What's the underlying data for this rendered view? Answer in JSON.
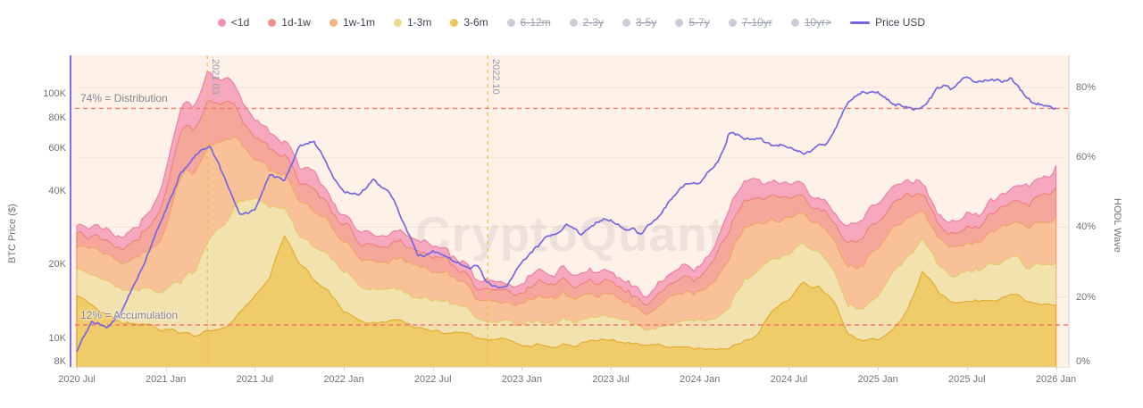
{
  "watermark": "CryptoQuant",
  "legend": {
    "active_items": [
      {
        "label": "<1d",
        "color": "#f191b0"
      },
      {
        "label": "1d-1w",
        "color": "#f0928a"
      },
      {
        "label": "1w-1m",
        "color": "#f5b385"
      },
      {
        "label": "1-3m",
        "color": "#efd98e"
      },
      {
        "label": "3-6m",
        "color": "#edc75a"
      }
    ],
    "inactive_items": [
      {
        "label": "6-12m"
      },
      {
        "label": "2-3y"
      },
      {
        "label": "3-5y"
      },
      {
        "label": "5-7y"
      },
      {
        "label": "7-10yr"
      },
      {
        "label": "10yr>"
      }
    ],
    "inactive_color": "#c9cdd8",
    "price_item": {
      "label": "Price USD",
      "color": "#7766e2"
    }
  },
  "axes": {
    "left": {
      "title": "BTC Price ($)",
      "scale": "log",
      "ticks": [
        {
          "label": "100K",
          "value": 100000
        },
        {
          "label": "80K",
          "value": 80000
        },
        {
          "label": "60K",
          "value": 60000
        },
        {
          "label": "40K",
          "value": 40000
        },
        {
          "label": "20K",
          "value": 20000
        },
        {
          "label": "10K",
          "value": 10000
        },
        {
          "label": "8K",
          "value": 8000
        }
      ]
    },
    "right": {
      "title": "HODL Wave",
      "scale": "linear",
      "range": [
        0,
        89
      ],
      "ticks": [
        {
          "label": "80%",
          "value": 80
        },
        {
          "label": "60%",
          "value": 60
        },
        {
          "label": "40%",
          "value": 40
        },
        {
          "label": "20%",
          "value": 20
        },
        {
          "label": "0%",
          "value": 0
        }
      ]
    },
    "x": {
      "ticks": [
        {
          "label": "2020 Jul",
          "month": 0
        },
        {
          "label": "2021 Jan",
          "month": 6
        },
        {
          "label": "2021 Jul",
          "month": 12
        },
        {
          "label": "2022 Jan",
          "month": 18
        },
        {
          "label": "2022 Jul",
          "month": 24
        },
        {
          "label": "2023 Jan",
          "month": 30
        },
        {
          "label": "2023 Jul",
          "month": 36
        },
        {
          "label": "2024 Jan",
          "month": 42
        },
        {
          "label": "2024 Jul",
          "month": 48
        },
        {
          "label": "2025 Jan",
          "month": 54
        },
        {
          "label": "2025 Jul",
          "month": 60
        },
        {
          "label": "2026 Jan",
          "month": 66
        }
      ]
    }
  },
  "annotations": {
    "distribution": {
      "label": "74% = Distribution",
      "value": 74,
      "color": "#f0786e"
    },
    "accumulation": {
      "label": "12% = Accumulation",
      "value": 12,
      "color": "#f0786e"
    },
    "vlines": [
      {
        "label": "2021.03",
        "month_index": 8.8,
        "color": "#edbc4c"
      },
      {
        "label": "2022.10",
        "month_index": 27.7,
        "color": "#edbc4c"
      }
    ]
  },
  "chart_data": {
    "type": "area",
    "stacked": true,
    "x_unit": "month",
    "x": [
      "2020-07",
      "2020-08",
      "2020-09",
      "2020-10",
      "2020-11",
      "2020-12",
      "2021-01",
      "2021-02",
      "2021-03",
      "2021-04",
      "2021-05",
      "2021-06",
      "2021-07",
      "2021-08",
      "2021-09",
      "2021-10",
      "2021-11",
      "2021-12",
      "2022-01",
      "2022-02",
      "2022-03",
      "2022-04",
      "2022-05",
      "2022-06",
      "2022-07",
      "2022-08",
      "2022-09",
      "2022-10",
      "2022-11",
      "2022-12",
      "2023-01",
      "2023-02",
      "2023-03",
      "2023-04",
      "2023-05",
      "2023-06",
      "2023-07",
      "2023-08",
      "2023-09",
      "2023-10",
      "2023-11",
      "2023-12",
      "2024-01",
      "2024-02",
      "2024-03",
      "2024-04",
      "2024-05",
      "2024-06",
      "2024-07",
      "2024-08",
      "2024-09",
      "2024-10",
      "2024-11",
      "2024-12",
      "2025-01",
      "2025-02",
      "2025-03",
      "2025-04",
      "2025-05",
      "2025-06",
      "2025-07",
      "2025-08",
      "2025-09",
      "2025-10",
      "2025-11",
      "2025-12",
      "2026-01"
    ],
    "y_right_label": "HODL Wave (%)",
    "y_left_label": "BTC Price ($)",
    "y_left_range_log": [
      8000,
      130000
    ],
    "grid": "horizontal-faint",
    "legend_position": "top-center",
    "series": [
      {
        "name": "<1d",
        "yaxis": "right",
        "fill": "#f6a9be",
        "stroke": "#ee7fa6",
        "values": [
          3.0,
          3.2,
          2.8,
          3.0,
          3.5,
          4.5,
          6.5,
          7.0,
          7.5,
          8.0,
          7.0,
          5.0,
          4.0,
          4.5,
          4.0,
          4.0,
          4.5,
          3.5,
          3.0,
          3.0,
          3.0,
          3.0,
          3.5,
          3.2,
          3.0,
          2.8,
          2.6,
          2.5,
          3.5,
          2.5,
          3.0,
          3.0,
          3.2,
          3.0,
          2.7,
          2.8,
          2.5,
          2.3,
          2.2,
          2.5,
          3.0,
          3.3,
          3.2,
          4.0,
          5.5,
          5.5,
          4.5,
          4.0,
          3.5,
          3.0,
          2.8,
          3.0,
          4.5,
          5.0,
          5.5,
          5.0,
          4.5,
          3.2,
          3.0,
          3.0,
          3.3,
          3.5,
          3.5,
          3.5,
          4.5,
          5.0,
          6.0
        ]
      },
      {
        "name": "1d-1w",
        "yaxis": "right",
        "fill": "#f5a79c",
        "stroke": "#ef837b",
        "values": [
          3.3,
          3.5,
          3.2,
          3.5,
          4.5,
          6.0,
          10,
          12,
          12,
          12.5,
          11,
          8,
          6,
          6.5,
          5.5,
          5.5,
          6,
          5,
          4.5,
          4.5,
          4.5,
          4.5,
          5,
          5,
          4.3,
          4,
          3.6,
          2.5,
          4,
          3,
          3.5,
          4,
          4.5,
          4,
          3.6,
          3.8,
          3.4,
          3,
          2.8,
          3.2,
          4.2,
          4.8,
          4.6,
          6,
          8.5,
          8.5,
          7.5,
          6.5,
          5.5,
          4.5,
          4.2,
          4.5,
          6.5,
          7.5,
          7.5,
          7,
          6.2,
          4.4,
          4.2,
          4.5,
          4.7,
          5,
          5,
          5.2,
          6.5,
          7,
          8
        ]
      },
      {
        "name": "1w-1m",
        "yaxis": "right",
        "fill": "#f9c197",
        "stroke": "#f2a268",
        "values": [
          6.9,
          7.5,
          7.0,
          7.5,
          9,
          11,
          17,
          30,
          29,
          26,
          24,
          17,
          12,
          11,
          10,
          9.5,
          10,
          9,
          8.5,
          8,
          8.5,
          8,
          9,
          9.5,
          8,
          7.5,
          6.8,
          5.5,
          6,
          5.5,
          6.5,
          7,
          7.5,
          7,
          6.5,
          6.7,
          6,
          5.5,
          5,
          5.8,
          7.5,
          8.5,
          8.2,
          10,
          14.5,
          15,
          13,
          11.5,
          10,
          8.5,
          8,
          8.5,
          11,
          13,
          14,
          13,
          12,
          8,
          7.8,
          8,
          8.5,
          9,
          9.5,
          9.5,
          11,
          12,
          13
        ]
      },
      {
        "name": "1-3m",
        "yaxis": "right",
        "fill": "#f2e2ae",
        "stroke": "#e6c96f",
        "values": [
          7.7,
          8.5,
          9.5,
          10,
          10.5,
          10,
          12,
          14.5,
          19,
          27,
          29,
          33,
          28,
          20,
          8,
          8,
          9,
          10,
          11,
          10,
          9,
          9,
          8.5,
          8.8,
          9,
          8.7,
          7.5,
          5.5,
          5,
          6,
          6,
          6.5,
          7,
          7.5,
          7.2,
          6.5,
          6.3,
          6,
          5.5,
          5,
          6,
          7.5,
          8,
          8.5,
          12,
          17,
          17.5,
          15,
          13,
          11,
          9.5,
          9,
          8,
          10,
          13,
          17,
          16,
          9,
          8,
          8,
          8.5,
          9.5,
          10,
          10.3,
          10,
          11,
          12
        ]
      },
      {
        "name": "3-6m",
        "yaxis": "right",
        "fill": "#f0cb69",
        "stroke": "#e2ac2f",
        "values": [
          21.2,
          18,
          15.5,
          13,
          12,
          11.5,
          11,
          9.5,
          9,
          10,
          11,
          15,
          20,
          25,
          37.4,
          30,
          25,
          22,
          16,
          14,
          13,
          13.5,
          13,
          11,
          10,
          9.5,
          9.5,
          8.5,
          8,
          7.5,
          6.5,
          6.3,
          6,
          6.2,
          6.5,
          7,
          7.3,
          7,
          6.5,
          6,
          5.5,
          5.5,
          5.5,
          5.2,
          5.5,
          7,
          9.5,
          16,
          20,
          24,
          23,
          18,
          10,
          7.5,
          8,
          11,
          16.5,
          27,
          22,
          19,
          18,
          19,
          20,
          20.5,
          19,
          18,
          17
        ]
      },
      {
        "name": "Price USD",
        "yaxis": "left",
        "type": "line",
        "stroke": "#7766e2",
        "unit": "K USD",
        "values": [
          9.2,
          11.7,
          10.8,
          13,
          17.5,
          24,
          34,
          47,
          56,
          60,
          45,
          34,
          33,
          46,
          45,
          60,
          63,
          49,
          42,
          40,
          44,
          41,
          31,
          21,
          22,
          22,
          19.5,
          19.5,
          16.5,
          16.8,
          21,
          23.5,
          27,
          29,
          27,
          29,
          30,
          27.5,
          26.5,
          31,
          37,
          43,
          43,
          52,
          68,
          65,
          65,
          65,
          62,
          59,
          61,
          67,
          90,
          100,
          103,
          92,
          85,
          90,
          106,
          106,
          115,
          114,
          114,
          117,
          96,
          89,
          88
        ]
      }
    ]
  }
}
